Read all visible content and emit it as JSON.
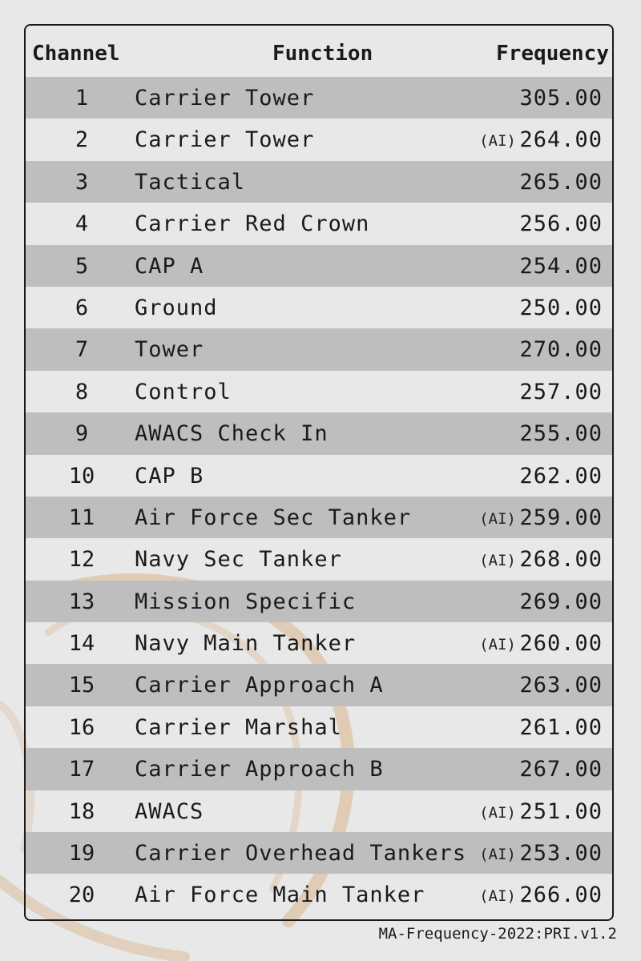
{
  "table": {
    "headers": {
      "channel": "Channel",
      "function": "Function",
      "frequency": "Frequency"
    },
    "ai_marker": "(AI)",
    "rows": [
      {
        "channel": "1",
        "function": "Carrier Tower",
        "ai": false,
        "frequency": "305.00"
      },
      {
        "channel": "2",
        "function": "Carrier Tower",
        "ai": true,
        "frequency": "264.00"
      },
      {
        "channel": "3",
        "function": "Tactical",
        "ai": false,
        "frequency": "265.00"
      },
      {
        "channel": "4",
        "function": "Carrier Red Crown",
        "ai": false,
        "frequency": "256.00"
      },
      {
        "channel": "5",
        "function": "CAP A",
        "ai": false,
        "frequency": "254.00"
      },
      {
        "channel": "6",
        "function": "Ground",
        "ai": false,
        "frequency": "250.00"
      },
      {
        "channel": "7",
        "function": "Tower",
        "ai": false,
        "frequency": "270.00"
      },
      {
        "channel": "8",
        "function": "Control",
        "ai": false,
        "frequency": "257.00"
      },
      {
        "channel": "9",
        "function": "AWACS Check In",
        "ai": false,
        "frequency": "255.00"
      },
      {
        "channel": "10",
        "function": "CAP B",
        "ai": false,
        "frequency": "262.00"
      },
      {
        "channel": "11",
        "function": "Air Force Sec Tanker",
        "ai": true,
        "frequency": "259.00"
      },
      {
        "channel": "12",
        "function": "Navy Sec Tanker",
        "ai": true,
        "frequency": "268.00"
      },
      {
        "channel": "13",
        "function": "Mission Specific",
        "ai": false,
        "frequency": "269.00"
      },
      {
        "channel": "14",
        "function": "Navy Main Tanker",
        "ai": true,
        "frequency": "260.00"
      },
      {
        "channel": "15",
        "function": "Carrier Approach A",
        "ai": false,
        "frequency": "263.00"
      },
      {
        "channel": "16",
        "function": "Carrier Marshal",
        "ai": false,
        "frequency": "261.00"
      },
      {
        "channel": "17",
        "function": "Carrier Approach B",
        "ai": false,
        "frequency": "267.00"
      },
      {
        "channel": "18",
        "function": "AWACS",
        "ai": true,
        "frequency": "251.00"
      },
      {
        "channel": "19",
        "function": "Carrier Overhead Tankers",
        "ai": true,
        "frequency": "253.00"
      },
      {
        "channel": "20",
        "function": "Air Force Main Tanker",
        "ai": true,
        "frequency": "266.00"
      }
    ]
  },
  "footer": {
    "doc_id": "MA-Frequency-2022:PRI.v1.2"
  },
  "colors": {
    "background": "#e8e8e8",
    "row_shade": "#bebebe",
    "border": "#1a1a1a",
    "stain": "#d9b48a"
  }
}
